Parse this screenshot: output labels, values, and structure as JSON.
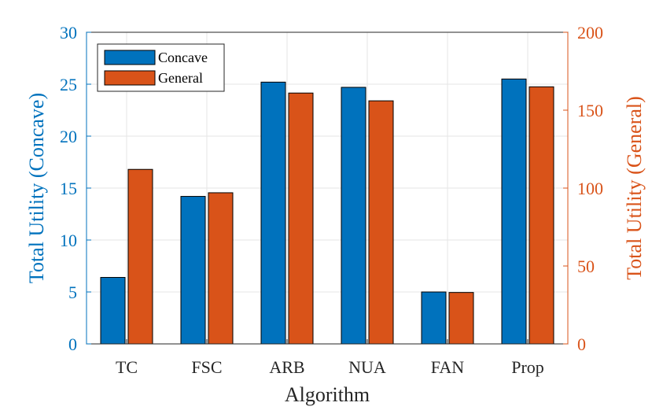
{
  "chart_data": {
    "type": "bar",
    "categories": [
      "TC",
      "FSC",
      "ARB",
      "NUA",
      "FAN",
      "Prop"
    ],
    "series": [
      {
        "name": "Concave",
        "axis": "left",
        "values": [
          6.4,
          14.2,
          25.2,
          24.7,
          5.0,
          25.5
        ]
      },
      {
        "name": "General",
        "axis": "right",
        "values": [
          112,
          97,
          161,
          156,
          33,
          165
        ]
      }
    ],
    "xlabel": "Algorithm",
    "ylabel_left": "Total Utility (Concave)",
    "ylabel_right": "Total Utility (General)",
    "ylim_left": [
      0,
      30
    ],
    "ylim_right": [
      0,
      200
    ],
    "yticks_left": [
      "0",
      "5",
      "10",
      "15",
      "20",
      "25",
      "30"
    ],
    "yticks_right": [
      "0",
      "50",
      "100",
      "150",
      "200"
    ],
    "legend_position": "top-left",
    "grid": true,
    "colors": {
      "concave": "#0072BD",
      "general": "#D95319",
      "left_axis": "#0072BD",
      "right_axis": "#D95319",
      "grid": "#e6e6e6"
    }
  }
}
